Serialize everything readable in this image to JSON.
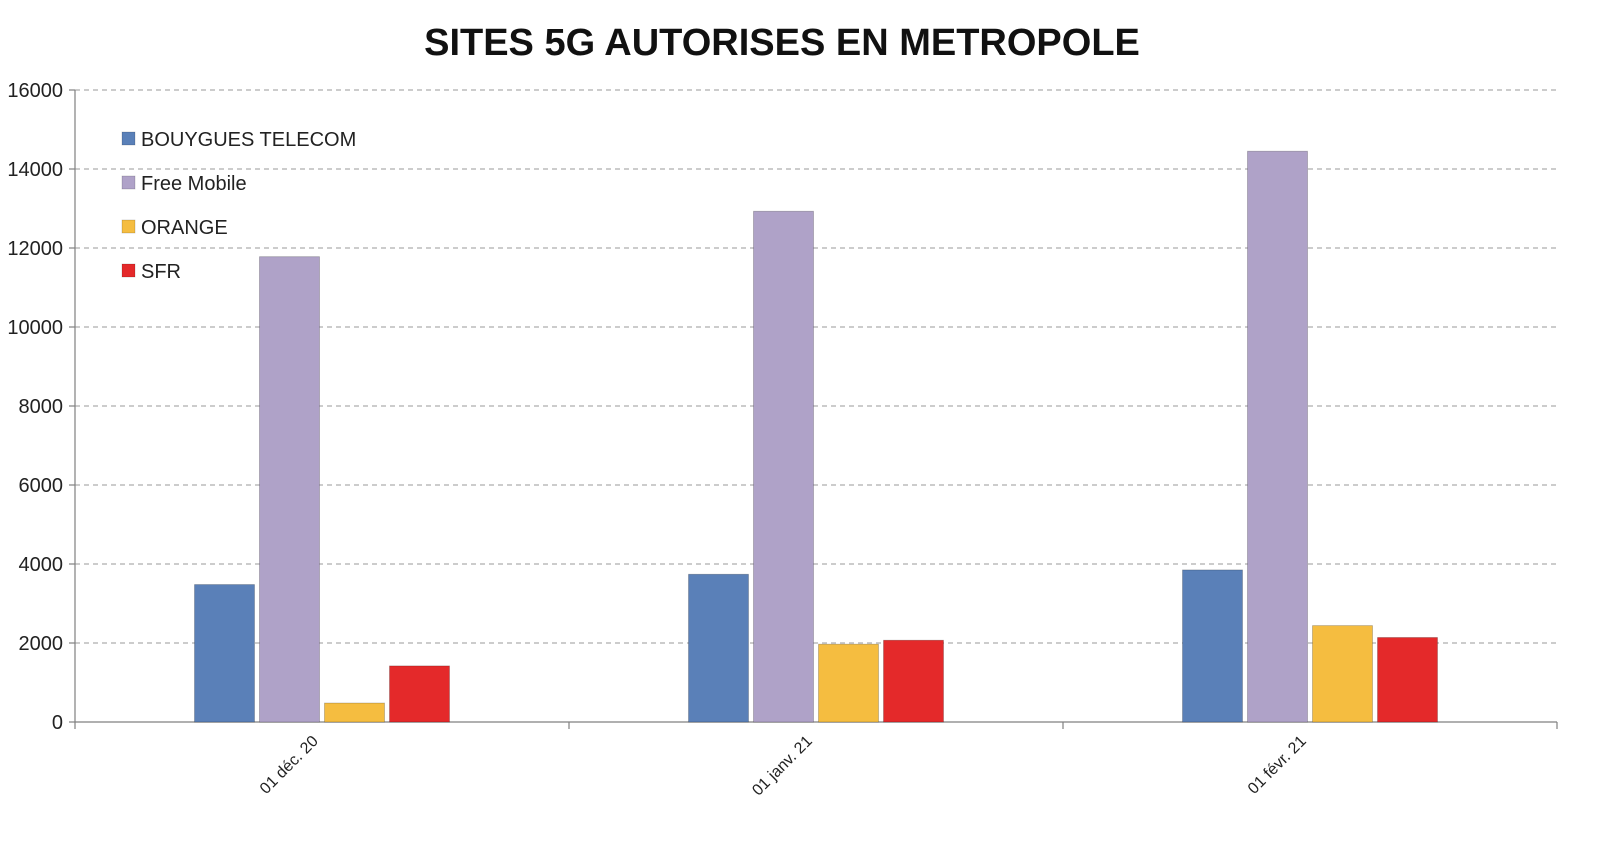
{
  "chart_data": {
    "type": "bar",
    "title": "SITES 5G AUTORISES EN METROPOLE",
    "xlabel": "",
    "ylabel": "",
    "categories": [
      "01 déc. 20",
      "01 janv. 21",
      "01 févr. 21"
    ],
    "ylim": [
      0,
      16000
    ],
    "yticks": [
      "0",
      "2000",
      "4000",
      "6000",
      "8000",
      "10000",
      "12000",
      "14000",
      "16000"
    ],
    "grid": true,
    "legend_position": "top-left",
    "series": [
      {
        "name": "BOUYGUES TELECOM",
        "color": "#5a80b8",
        "values": [
          3480,
          3740,
          3850
        ]
      },
      {
        "name": "Free Mobile",
        "color": "#afa2c8",
        "values": [
          11780,
          12930,
          14450
        ]
      },
      {
        "name": "ORANGE",
        "color": "#f5bd40",
        "values": [
          480,
          1970,
          2440
        ]
      },
      {
        "name": "SFR",
        "color": "#e4292a",
        "values": [
          1420,
          2070,
          2140
        ]
      }
    ]
  }
}
